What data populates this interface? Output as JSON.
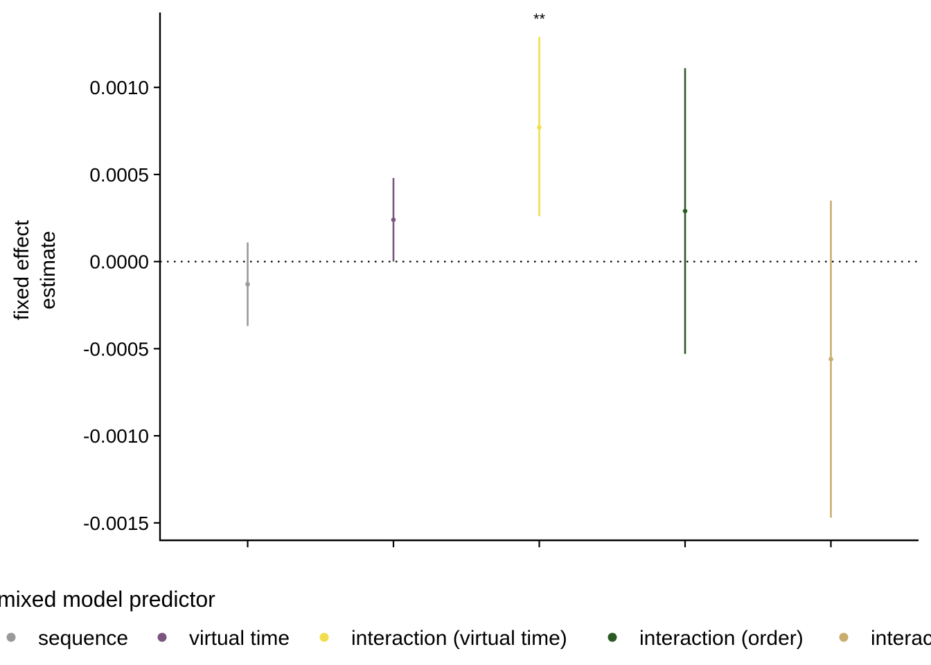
{
  "chart_data": {
    "type": "scatter",
    "title": "",
    "xlabel": "",
    "ylabel": "fixed effect\nestimate",
    "ylim": [
      -0.0016,
      0.00143
    ],
    "yticks": [
      0.001,
      0.0005,
      0.0,
      -0.0005,
      -0.001,
      -0.0015
    ],
    "ytick_labels": [
      "0.0010",
      "0.0005",
      "0.0000",
      "-0.0005",
      "-0.0010",
      "-0.0015"
    ],
    "reference_line": 0,
    "grid": false,
    "legend_title": "mixed model predictor",
    "legend_position": "bottom",
    "series": [
      {
        "name": "sequence",
        "estimate": -0.00013,
        "lower": -0.00037,
        "upper": 0.00011,
        "color": "#999999",
        "annotation": ""
      },
      {
        "name": "virtual time",
        "estimate": 0.00024,
        "lower": 0.0,
        "upper": 0.00048,
        "color": "#7B5480",
        "annotation": ""
      },
      {
        "name": "interaction (virtual time)",
        "estimate": 0.00077,
        "lower": 0.00026,
        "upper": 0.00129,
        "color": "#F2DE4D",
        "annotation": "**"
      },
      {
        "name": "interaction (order)",
        "estimate": 0.00029,
        "lower": -0.00053,
        "upper": 0.00111,
        "color": "#2C5A25",
        "annotation": ""
      },
      {
        "name": "interaction (virtual time, unshuffled)",
        "estimate": -0.00056,
        "lower": -0.00147,
        "upper": 0.00035,
        "color": "#C8AD6E",
        "annotation": ""
      }
    ]
  }
}
